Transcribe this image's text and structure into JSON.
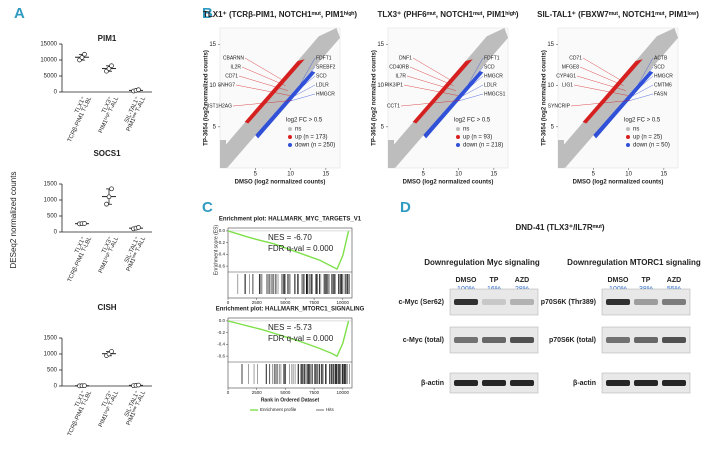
{
  "panel_a": {
    "label": "A",
    "y_label": "DESeq2 normalized counts",
    "categories": [
      [
        "TLX1⁺",
        "TCRβ-PIM1 T-LBL"
      ],
      [
        "TLX3⁺",
        "PIM1ʰⁱᵍʰ T-ALL"
      ],
      [
        "SIL-TAL1⁺",
        "PIM1ˡᵒʷ T-ALL"
      ]
    ],
    "plots": [
      {
        "title": "PIM1",
        "ylim": [
          0,
          15000
        ],
        "yticks": [
          0,
          5000,
          10000,
          15000
        ],
        "values": [
          [
            10000,
            10800,
            11800
          ],
          [
            6500,
            7300,
            8200
          ],
          [
            300,
            500,
            700
          ]
        ]
      },
      {
        "title": "SOCS1",
        "ylim": [
          0,
          1500
        ],
        "yticks": [
          0,
          500,
          1000,
          1500
        ],
        "values": [
          [
            255,
            260,
            265
          ],
          [
            870,
            1100,
            1350
          ],
          [
            100,
            120,
            140
          ]
        ]
      },
      {
        "title": "CISH",
        "ylim": [
          0,
          1500
        ],
        "yticks": [
          0,
          500,
          1000,
          1500
        ],
        "values": [
          [
            5,
            8,
            10
          ],
          [
            950,
            1000,
            1080
          ],
          [
            10,
            20,
            30
          ]
        ]
      }
    ]
  },
  "panel_b": {
    "label": "B",
    "x_label": "DMSO (log2 normalized counts)",
    "y_label": "TP-3654 (log2 normalized counts)",
    "legend_title": "log2 FC > 0.5",
    "xlim": [
      0,
      17
    ],
    "ylim": [
      0,
      17
    ],
    "xticks": [
      5,
      10,
      15
    ],
    "yticks": [
      5,
      10,
      15
    ],
    "plots": [
      {
        "title": "TLX1⁺ (TCRβ-PIM1, NOTCH1ᵐᵘᵗ, PIM1ʰⁱᵍʰ)",
        "legend": [
          "ns",
          "up (n = 173)",
          "down (n = 250)"
        ],
        "up_genes": [
          "CBARNN",
          "IL2R",
          "CD71",
          "SNHG7",
          "HIST1H2AG"
        ],
        "down_genes": [
          "FDFT1",
          "SREBF2",
          "SCD",
          "LDLR",
          "HMGCR"
        ]
      },
      {
        "title": "TLX3⁺ (PHF6ᵐᵘᵗ, NOTCH1ᵐᵘᵗ, PIM1ʰⁱᵍʰ)",
        "legend": [
          "ns",
          "up (n = 93)",
          "down (n = 218)"
        ],
        "up_genes": [
          "DNF1",
          "CD40RB",
          "IL7R",
          "PIK3IP1",
          "CCT1"
        ],
        "down_genes": [
          "FDFT1",
          "SCD",
          "HMGCR",
          "LDLR",
          "HMGCS1"
        ]
      },
      {
        "title": "SIL-TAL1⁺ (FBXW7ᵐᵘᵗ, NOTCH1ᵐᵘᵗ, PIM1ˡᵒʷ)",
        "legend": [
          "ns",
          "up (n = 25)",
          "down (n = 50)"
        ],
        "up_genes": [
          "CD71",
          "MFGE8",
          "CYP4G1",
          "LIG1",
          "SYNCRIP"
        ],
        "down_genes": [
          "ACTB",
          "SCD",
          "HMGCR",
          "CMTM6",
          "FASN"
        ]
      }
    ],
    "colors": {
      "ns": "#bdbdbd",
      "up": "#d62020",
      "down": "#3050d8"
    }
  },
  "panel_c": {
    "label": "C",
    "y_label": "Enrichment score (ES)",
    "x_label": "Rank in Ordered Dataset",
    "legend": [
      "Enrichment profile",
      "Hits"
    ],
    "xlim": [
      0,
      10800
    ],
    "xticks": [
      0,
      2500,
      5000,
      7500,
      10000
    ],
    "ylim": [
      -0.7,
      0.05
    ],
    "yticks": [
      {
        "value": 0,
        "label": "0.0"
      },
      {
        "value": -0.2,
        "label": "-0.2"
      },
      {
        "value": -0.4,
        "label": "-0.4"
      },
      {
        "value": -0.6,
        "label": "-0.6"
      }
    ],
    "color": "#7ee04a",
    "plots": [
      {
        "title": "Enrichment plot: HALLMARK_MYC_TARGETS_V1",
        "nes": "NES = -6.70",
        "fdr": "FDR q-val = 0.000",
        "x": [
          0,
          1000,
          2000,
          3000,
          4000,
          5000,
          6000,
          7000,
          8000,
          9000,
          9500,
          10000,
          10500
        ],
        "values": [
          0,
          -0.06,
          -0.12,
          -0.17,
          -0.22,
          -0.29,
          -0.36,
          -0.43,
          -0.5,
          -0.6,
          -0.65,
          -0.42,
          0
        ]
      },
      {
        "title": "Enrichment plot: HALLMARK_MTORC1_SIGNALING",
        "nes": "NES = -5.73",
        "fdr": "FDR q-val = 0.000",
        "x": [
          0,
          1000,
          2000,
          3000,
          4000,
          5000,
          6000,
          7000,
          8000,
          9000,
          9500,
          10000,
          10500
        ],
        "values": [
          0,
          -0.05,
          -0.1,
          -0.15,
          -0.21,
          -0.27,
          -0.33,
          -0.4,
          -0.47,
          -0.55,
          -0.6,
          -0.38,
          0
        ]
      }
    ]
  },
  "panel_d": {
    "label": "D",
    "title": "DND-41 (TLX3⁺/IL7Rᵐᵘᵗ)",
    "blots": [
      {
        "title": "Downregulation Myc signaling",
        "lanes": [
          "DMSO",
          "TP",
          "AZD"
        ],
        "percents": [
          "100%",
          "16%",
          "28%"
        ],
        "rows": [
          "c-Myc (Ser62)",
          "c-Myc (total)",
          "β-actin"
        ]
      },
      {
        "title": "Downregulation MTORC1 signaling",
        "lanes": [
          "DMSO",
          "TP",
          "AZD"
        ],
        "percents": [
          "100%",
          "38%",
          "55%"
        ],
        "rows": [
          "p70S6K (Thr389)",
          "p70S6K (total)",
          "β-actin"
        ]
      }
    ]
  }
}
